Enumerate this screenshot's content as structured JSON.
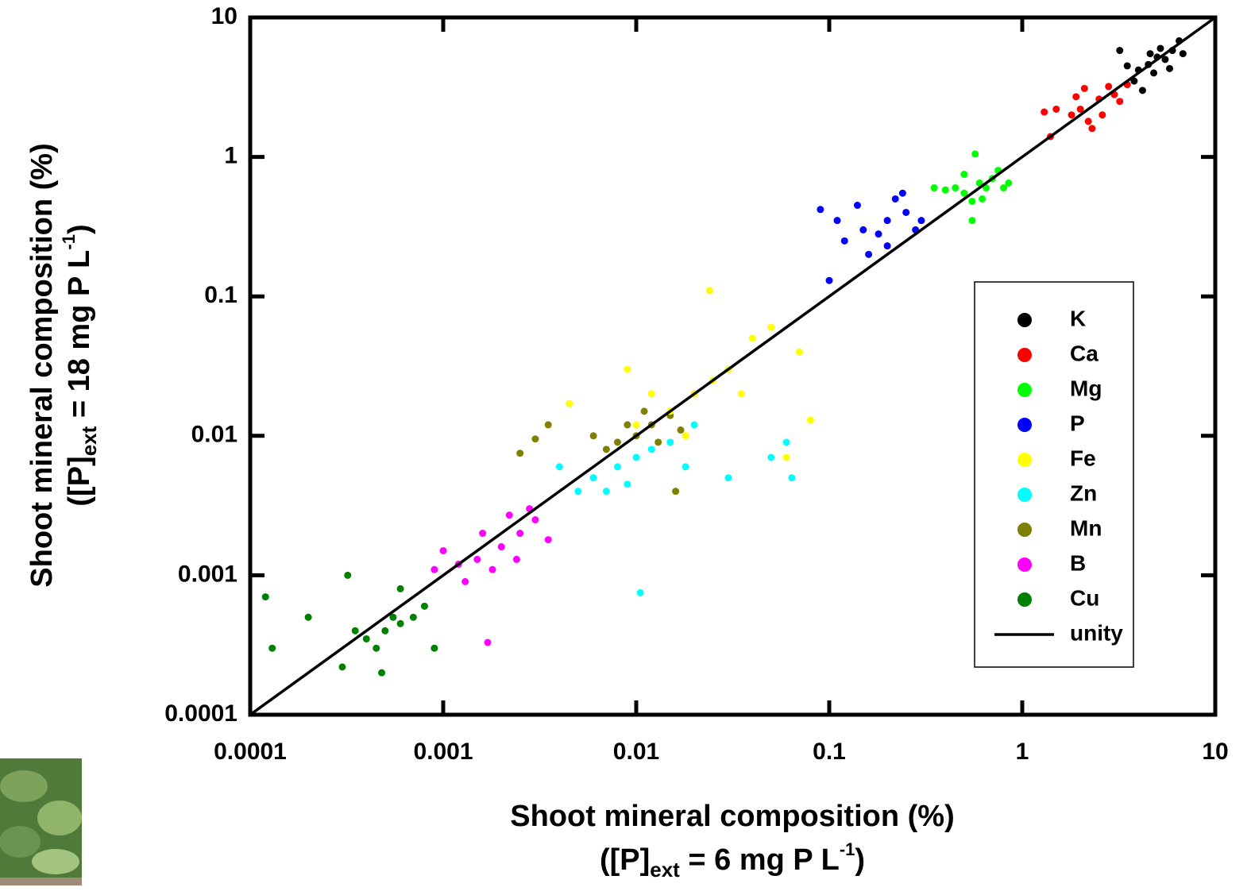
{
  "chart_data": {
    "type": "scatter",
    "x_label": {
      "line1": "Shoot mineral composition (%)",
      "line2": [
        "([P]",
        "ext",
        " = 6 mg P L",
        "-1",
        ")"
      ]
    },
    "y_label": {
      "line1": "Shoot mineral composition (%)",
      "line2": [
        "([P]",
        "ext",
        " = 18 mg P L",
        "-1",
        ")"
      ]
    },
    "xscale": "log",
    "yscale": "log",
    "xlim": [
      0.0001,
      10
    ],
    "ylim": [
      0.0001,
      10
    ],
    "xticks": [
      0.0001,
      0.001,
      0.01,
      0.1,
      1,
      10
    ],
    "yticks": [
      0.0001,
      0.001,
      0.01,
      0.1,
      1,
      10
    ],
    "legend": "right",
    "series": [
      {
        "name": "K",
        "color": "#000000",
        "x": [
          4.5,
          5,
          5.5,
          4,
          6,
          3.8,
          4.8,
          5.2,
          6.5,
          3.2,
          4.2,
          5.8,
          4.6,
          3.5,
          6.8
        ],
        "values": [
          4.6,
          5.2,
          5,
          4.2,
          5.8,
          3.5,
          4.0,
          6,
          6.8,
          5.8,
          3,
          4.3,
          5.5,
          4.5,
          5.5
        ]
      },
      {
        "name": "Ca",
        "color": "#ff0000",
        "x": [
          2,
          2.5,
          3,
          1.8,
          2.2,
          2.8,
          1.5,
          1.3,
          2.6,
          3.5,
          1.9,
          2.3,
          1.4,
          3.2,
          2.1
        ],
        "values": [
          2.2,
          2.6,
          2.8,
          2,
          1.8,
          3.2,
          2.2,
          2.1,
          2,
          3.3,
          2.7,
          1.6,
          1.4,
          2.5,
          3.1
        ]
      },
      {
        "name": "Mg",
        "color": "#00ff00",
        "x": [
          0.5,
          0.6,
          0.7,
          0.55,
          0.65,
          0.8,
          0.45,
          0.4,
          0.57,
          0.75,
          0.55,
          0.35,
          0.62,
          0.5,
          0.85
        ],
        "values": [
          0.55,
          0.65,
          0.7,
          0.48,
          0.6,
          0.6,
          0.6,
          0.58,
          1.05,
          0.8,
          0.35,
          0.6,
          0.5,
          0.75,
          0.65
        ]
      },
      {
        "name": "P",
        "color": "#0000ff",
        "x": [
          0.15,
          0.2,
          0.25,
          0.12,
          0.18,
          0.22,
          0.09,
          0.1,
          0.14,
          0.28,
          0.3,
          0.16,
          0.2,
          0.11,
          0.24
        ],
        "values": [
          0.3,
          0.35,
          0.4,
          0.25,
          0.28,
          0.5,
          0.42,
          0.13,
          0.45,
          0.3,
          0.35,
          0.2,
          0.23,
          0.35,
          0.55
        ]
      },
      {
        "name": "Fe",
        "color": "#ffff00",
        "x": [
          0.01,
          0.015,
          0.02,
          0.025,
          0.03,
          0.012,
          0.018,
          0.0045,
          0.024,
          0.04,
          0.05,
          0.08,
          0.06,
          0.035,
          0.009,
          0.07
        ],
        "values": [
          0.012,
          0.015,
          0.02,
          0.025,
          0.03,
          0.02,
          0.01,
          0.017,
          0.11,
          0.05,
          0.06,
          0.013,
          0.007,
          0.02,
          0.03,
          0.04
        ]
      },
      {
        "name": "Zn",
        "color": "#00ffff",
        "x": [
          0.006,
          0.008,
          0.01,
          0.012,
          0.005,
          0.007,
          0.004,
          0.015,
          0.02,
          0.0105,
          0.03,
          0.05,
          0.06,
          0.064,
          0.009,
          0.018
        ],
        "values": [
          0.005,
          0.006,
          0.007,
          0.008,
          0.004,
          0.004,
          0.006,
          0.009,
          0.012,
          0.00075,
          0.005,
          0.007,
          0.009,
          0.005,
          0.0045,
          0.006
        ]
      },
      {
        "name": "Mn",
        "color": "#808000",
        "x": [
          0.008,
          0.01,
          0.012,
          0.015,
          0.007,
          0.009,
          0.011,
          0.0025,
          0.0035,
          0.003,
          0.016,
          0.02,
          0.013,
          0.006,
          0.017
        ],
        "values": [
          0.009,
          0.01,
          0.012,
          0.014,
          0.008,
          0.012,
          0.015,
          0.0075,
          0.012,
          0.0095,
          0.004,
          0.02,
          0.009,
          0.01,
          0.011
        ]
      },
      {
        "name": "B",
        "color": "#ff00ff",
        "x": [
          0.0015,
          0.002,
          0.0025,
          0.0018,
          0.0012,
          0.003,
          0.0013,
          0.0022,
          0.0009,
          0.0017,
          0.0035,
          0.0028,
          0.001,
          0.0024,
          0.0016
        ],
        "values": [
          0.0013,
          0.0016,
          0.002,
          0.0011,
          0.0012,
          0.0025,
          0.0009,
          0.0027,
          0.0011,
          0.00033,
          0.0018,
          0.003,
          0.0015,
          0.0013,
          0.002
        ]
      },
      {
        "name": "Cu",
        "color": "#008000",
        "x": [
          0.0005,
          0.0006,
          0.0004,
          0.00055,
          0.00045,
          0.0007,
          0.00035,
          0.00012,
          0.00013,
          0.00032,
          0.0002,
          0.0009,
          0.0008,
          0.0006,
          0.0003,
          0.00048
        ],
        "values": [
          0.0004,
          0.00045,
          0.00035,
          0.0005,
          0.0003,
          0.0005,
          0.0004,
          0.0007,
          0.0003,
          0.001,
          0.0005,
          0.0003,
          0.0006,
          0.0008,
          0.00022,
          0.0002
        ]
      },
      {
        "name": "unity",
        "type": "line",
        "color": "#000000",
        "x": [
          0.0001,
          10
        ],
        "values": [
          0.0001,
          10
        ]
      }
    ]
  }
}
